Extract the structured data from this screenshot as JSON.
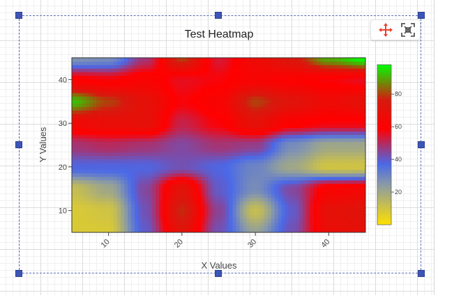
{
  "chart_data": {
    "type": "heatmap",
    "title": "Test Heatmap",
    "xlabel": "X Values",
    "ylabel": "Y Values",
    "x": [
      5,
      10,
      15,
      20,
      25,
      30,
      35,
      40,
      45
    ],
    "y": [
      5,
      10,
      15,
      20,
      25,
      30,
      35,
      40,
      45
    ],
    "xlim": [
      5,
      45
    ],
    "ylim": [
      5,
      45
    ],
    "x_ticks": [
      10,
      20,
      30,
      40
    ],
    "y_ticks": [
      10,
      20,
      30,
      40
    ],
    "z": [
      [
        8,
        8,
        40,
        72,
        42,
        22,
        42,
        68,
        70
      ],
      [
        8,
        10,
        42,
        78,
        45,
        12,
        40,
        70,
        72
      ],
      [
        12,
        20,
        44,
        72,
        40,
        28,
        44,
        62,
        64
      ],
      [
        38,
        38,
        38,
        42,
        38,
        30,
        20,
        10,
        10
      ],
      [
        48,
        50,
        48,
        44,
        48,
        46,
        28,
        20,
        20
      ],
      [
        65,
        68,
        70,
        52,
        58,
        70,
        60,
        58,
        58
      ],
      [
        92,
        80,
        70,
        58,
        62,
        80,
        72,
        66,
        70
      ],
      [
        60,
        58,
        62,
        56,
        58,
        62,
        60,
        58,
        56
      ],
      [
        26,
        28,
        48,
        80,
        54,
        66,
        74,
        90,
        98
      ]
    ],
    "colorscale": [
      [
        0,
        "#ffe000"
      ],
      [
        0.25,
        "#8a9aa6"
      ],
      [
        0.38,
        "#4a69e8"
      ],
      [
        0.6,
        "#ff0000"
      ],
      [
        0.78,
        "#d61a0e"
      ],
      [
        1,
        "#00ff00"
      ]
    ],
    "zmin": 0,
    "zmax": 98,
    "colorbar_ticks": [
      20,
      40,
      60,
      80
    ],
    "grid": false,
    "colorbar": "right"
  },
  "toolbar": {
    "move_icon": "move-icon",
    "fit_icon": "fit-screen-icon",
    "accent": "#e8412c"
  },
  "selection": {
    "border_color": "#5b6fb8",
    "handle_color": "#3d55b5"
  }
}
